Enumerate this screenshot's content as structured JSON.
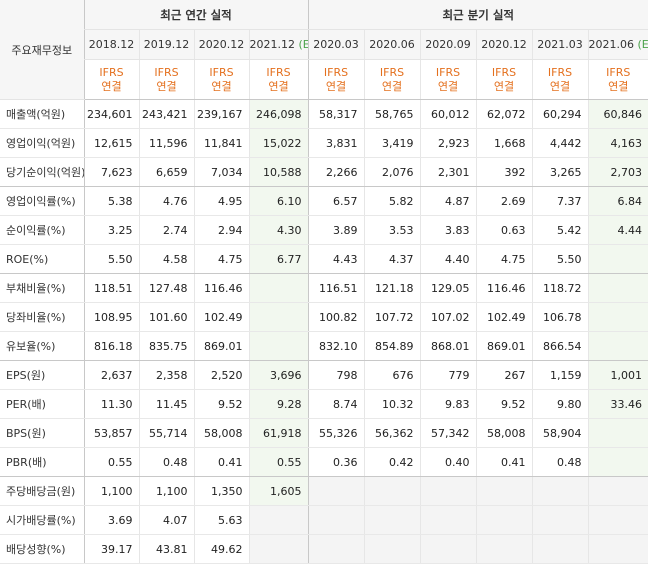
{
  "corner_label": "주요재무정보",
  "groups": {
    "annual": "최근 연간 실적",
    "quarterly": "최근 분기 실적"
  },
  "periods": [
    {
      "label": "2018.12",
      "est": ""
    },
    {
      "label": "2019.12",
      "est": ""
    },
    {
      "label": "2020.12",
      "est": ""
    },
    {
      "label": "2021.12",
      "est": "(E)"
    },
    {
      "label": "2020.03",
      "est": ""
    },
    {
      "label": "2020.06",
      "est": ""
    },
    {
      "label": "2020.09",
      "est": ""
    },
    {
      "label": "2020.12",
      "est": ""
    },
    {
      "label": "2021.03",
      "est": ""
    },
    {
      "label": "2021.06",
      "est": "(E)"
    }
  ],
  "ifrs": [
    "IFRS",
    "연결"
  ],
  "rows": [
    {
      "label": "매출액(억원)",
      "values": [
        "234,601",
        "243,421",
        "239,167",
        "246,098",
        "58,317",
        "58,765",
        "60,012",
        "62,072",
        "60,294",
        "60,846"
      ]
    },
    {
      "label": "영업이익(억원)",
      "values": [
        "12,615",
        "11,596",
        "11,841",
        "15,022",
        "3,831",
        "3,419",
        "2,923",
        "1,668",
        "4,442",
        "4,163"
      ]
    },
    {
      "label": "당기순이익(억원)",
      "values": [
        "7,623",
        "6,659",
        "7,034",
        "10,588",
        "2,266",
        "2,076",
        "2,301",
        "392",
        "3,265",
        "2,703"
      ]
    },
    {
      "label": "영업이익률(%)",
      "values": [
        "5.38",
        "4.76",
        "4.95",
        "6.10",
        "6.57",
        "5.82",
        "4.87",
        "2.69",
        "7.37",
        "6.84"
      ]
    },
    {
      "label": "순이익률(%)",
      "values": [
        "3.25",
        "2.74",
        "2.94",
        "4.30",
        "3.89",
        "3.53",
        "3.83",
        "0.63",
        "5.42",
        "4.44"
      ]
    },
    {
      "label": "ROE(%)",
      "values": [
        "5.50",
        "4.58",
        "4.75",
        "6.77",
        "4.43",
        "4.37",
        "4.40",
        "4.75",
        "5.50",
        ""
      ]
    },
    {
      "label": "부채비율(%)",
      "values": [
        "118.51",
        "127.48",
        "116.46",
        "",
        "116.51",
        "121.18",
        "129.05",
        "116.46",
        "118.72",
        ""
      ]
    },
    {
      "label": "당좌비율(%)",
      "values": [
        "108.95",
        "101.60",
        "102.49",
        "",
        "100.82",
        "107.72",
        "107.02",
        "102.49",
        "106.78",
        ""
      ]
    },
    {
      "label": "유보율(%)",
      "values": [
        "816.18",
        "835.75",
        "869.01",
        "",
        "832.10",
        "854.89",
        "868.01",
        "869.01",
        "866.54",
        ""
      ]
    },
    {
      "label": "EPS(원)",
      "values": [
        "2,637",
        "2,358",
        "2,520",
        "3,696",
        "798",
        "676",
        "779",
        "267",
        "1,159",
        "1,001"
      ]
    },
    {
      "label": "PER(배)",
      "values": [
        "11.30",
        "11.45",
        "9.52",
        "9.28",
        "8.74",
        "10.32",
        "9.83",
        "9.52",
        "9.80",
        "33.46"
      ]
    },
    {
      "label": "BPS(원)",
      "values": [
        "53,857",
        "55,714",
        "58,008",
        "61,918",
        "55,326",
        "56,362",
        "57,342",
        "58,008",
        "58,904",
        ""
      ]
    },
    {
      "label": "PBR(배)",
      "values": [
        "0.55",
        "0.48",
        "0.41",
        "0.55",
        "0.36",
        "0.42",
        "0.40",
        "0.41",
        "0.48",
        ""
      ]
    },
    {
      "label": "주당배당금(원)",
      "values": [
        "1,100",
        "1,100",
        "1,350",
        "1,605",
        "",
        "",
        "",
        "",
        "",
        ""
      ]
    },
    {
      "label": "시가배당률(%)",
      "values": [
        "3.69",
        "4.07",
        "5.63",
        "",
        "",
        "",
        "",
        "",
        "",
        ""
      ]
    },
    {
      "label": "배당성향(%)",
      "values": [
        "39.17",
        "43.81",
        "49.62",
        "",
        "",
        "",
        "",
        "",
        "",
        ""
      ]
    }
  ]
}
